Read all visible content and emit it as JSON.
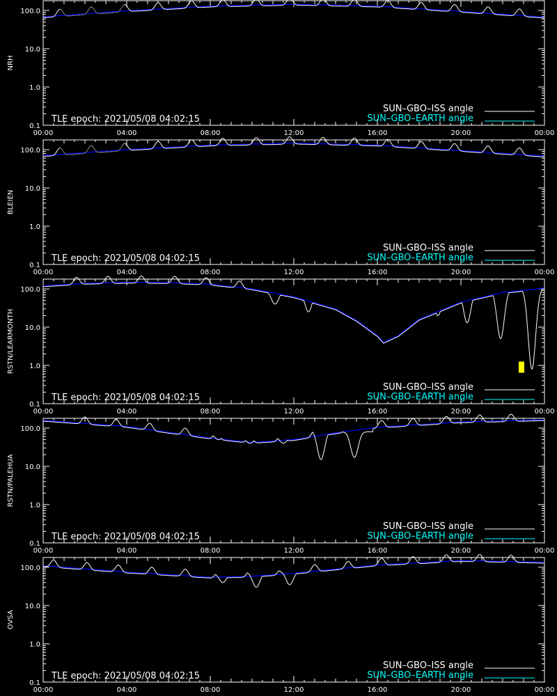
{
  "chart_data": [
    {
      "type": "line",
      "ylabel": "NRH",
      "yscale": "log",
      "ylim": [
        0.1,
        180
      ],
      "xlim_hours": [
        0,
        24
      ],
      "epoch_text": "TLE epoch: 2021/05/08 04:02:15",
      "earth": {
        "t": [
          0,
          4,
          8,
          12,
          16,
          20,
          24
        ],
        "v": [
          68,
          98,
          130,
          145,
          130,
          95,
          67
        ]
      },
      "iss": {
        "start_v": 115,
        "peaks": [
          0.8,
          2.3,
          3.9,
          5.5,
          7.1,
          8.6,
          10.2,
          11.8,
          13.4,
          14.9,
          16.5,
          18.1,
          19.7,
          21.3,
          22.8
        ],
        "occult": [
          [
            0.8,
            2.3
          ],
          [
            2.3,
            3.9
          ]
        ],
        "dips": []
      }
    },
    {
      "type": "line",
      "ylabel": "BLEIEN",
      "yscale": "log",
      "ylim": [
        0.1,
        180
      ],
      "xlim_hours": [
        0,
        24
      ],
      "epoch_text": "TLE epoch: 2021/05/08 04:02:15",
      "earth": {
        "t": [
          0,
          4,
          8,
          12,
          16,
          20,
          24
        ],
        "v": [
          70,
          100,
          132,
          148,
          132,
          95,
          68
        ]
      },
      "iss": {
        "start_v": 115,
        "peaks": [
          0.8,
          2.3,
          3.9,
          5.5,
          7.1,
          8.6,
          10.2,
          11.8,
          13.4,
          14.9,
          16.5,
          18.1,
          19.7,
          21.3,
          22.8
        ],
        "occult": [
          [
            0.8,
            2.3
          ],
          [
            2.3,
            3.9
          ]
        ],
        "dips": []
      }
    },
    {
      "type": "line",
      "ylabel": "RSTN/LEARMONTH",
      "yscale": "log",
      "ylim": [
        0.1,
        180
      ],
      "xlim_hours": [
        0,
        24
      ],
      "epoch_text": "TLE epoch: 2021/05/08 04:02:15",
      "earth": {
        "t": [
          0,
          2,
          4,
          6,
          8,
          10,
          12,
          14,
          15,
          16,
          16.3,
          17,
          18,
          20,
          22,
          24
        ],
        "v": [
          120,
          140,
          148,
          146,
          132,
          100,
          62,
          30,
          15,
          6,
          4,
          6,
          16,
          45,
          80,
          105
        ]
      },
      "iss": {
        "start_v": 135,
        "peaks": [
          1.6,
          3.1,
          4.7,
          6.3,
          7.8,
          9.4
        ],
        "occult": [],
        "dips": [
          [
            11.1,
            90,
            40
          ],
          [
            12.7,
            90,
            25
          ],
          [
            14.3,
            55,
            35
          ],
          [
            15.8,
            55,
            35
          ],
          [
            17.4,
            55,
            30
          ],
          [
            18.9,
            80,
            20
          ],
          [
            20.3,
            95,
            13
          ],
          [
            21.9,
            100,
            5
          ],
          [
            23.4,
            105,
            0.8
          ]
        ]
      },
      "marker": {
        "time_h": 22.9,
        "value": 0.9,
        "color": "#ffff00"
      }
    },
    {
      "type": "line",
      "ylabel": "RSTN/PALEHUA",
      "yscale": "log",
      "ylim": [
        0.1,
        180
      ],
      "xlim_hours": [
        0,
        24
      ],
      "epoch_text": "TLE epoch: 2021/05/08 04:02:15",
      "earth": {
        "t": [
          0,
          4,
          8,
          10,
          12,
          14,
          16,
          20,
          24
        ],
        "v": [
          160,
          110,
          55,
          42,
          50,
          75,
          105,
          145,
          165
        ]
      },
      "iss": {
        "start_v": 175,
        "peaks": [
          2,
          3.5,
          5.1,
          6.8,
          8.3,
          9.9,
          11.4,
          13.0,
          14.6,
          16.2,
          17.7,
          19.3,
          20.9,
          22.4
        ],
        "occult": [],
        "dips": [
          [
            8.4,
            70,
            50
          ],
          [
            9.9,
            55,
            40
          ],
          [
            11.5,
            60,
            40
          ],
          [
            13.3,
            90,
            15
          ],
          [
            14.9,
            80,
            17
          ]
        ]
      }
    },
    {
      "type": "line",
      "ylabel": "OVSA",
      "yscale": "log",
      "ylim": [
        0.1,
        180
      ],
      "xlim_hours": [
        0,
        24
      ],
      "epoch_text": "TLE epoch: 2021/05/08 04:02:15",
      "earth": {
        "t": [
          0,
          4,
          8,
          10,
          12,
          14,
          16,
          20,
          24
        ],
        "v": [
          110,
          75,
          55,
          58,
          70,
          90,
          115,
          150,
          135
        ]
      },
      "iss": {
        "start_v": 150,
        "peaks": [
          0.5,
          2.1,
          3.6,
          5.2,
          6.8,
          8.4,
          9.9,
          11.4,
          13.0,
          14.6,
          16.2,
          17.7,
          19.3,
          20.9,
          22.4
        ],
        "occult": [],
        "dips": [
          [
            8.6,
            70,
            40
          ],
          [
            10.2,
            75,
            30
          ],
          [
            11.8,
            80,
            35
          ]
        ]
      }
    }
  ],
  "x_ticks": [
    "00:00",
    "04:00",
    "08:00",
    "12:00",
    "16:00",
    "20:00",
    "00:00"
  ],
  "y_ticks": [
    "100.0",
    "10.0",
    "1.0",
    "0.1"
  ],
  "legend": {
    "iss_label": "SUN–GBO–ISS angle",
    "earth_label": "SUN–GBO–EARTH angle"
  },
  "colors": {
    "background": "#000000",
    "axes": "#ffffff",
    "iss": "#ffffff",
    "iss_occulted": "#606060",
    "earth_curve": "#0000ff",
    "earth_legend": "#00ffff",
    "marker": "#ffff00"
  }
}
